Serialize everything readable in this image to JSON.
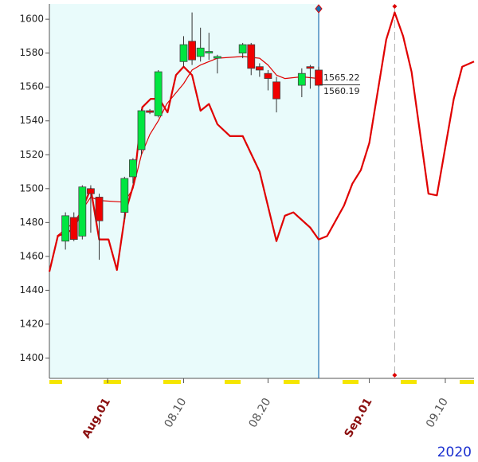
{
  "chart_data": {
    "type": "candlestick",
    "x": [
      0,
      1,
      2,
      3,
      4,
      7,
      8,
      9,
      10,
      11,
      14,
      15,
      16,
      17,
      18,
      21,
      22,
      23,
      24,
      25,
      28,
      29,
      30
    ],
    "open": [
      1469,
      1483,
      1472,
      1500,
      1495,
      1486,
      1507,
      1523,
      1546,
      1543,
      1575,
      1587,
      1578,
      1580,
      1577,
      1580,
      1585,
      1572,
      1568,
      1563,
      1561,
      1572,
      1570
    ],
    "high": [
      1486,
      1486,
      1502,
      1502,
      1497,
      1507,
      1518,
      1547,
      1547,
      1570,
      1590,
      1604,
      1595,
      1592,
      1579,
      1586,
      1586,
      1574,
      1570,
      1566,
      1571,
      1573,
      1572
    ],
    "low": [
      1464,
      1469,
      1470,
      1474,
      1458,
      1482,
      1503,
      1520,
      1544,
      1542,
      1572,
      1573,
      1575,
      1576,
      1568,
      1577,
      1567,
      1566,
      1558,
      1545,
      1554,
      1559,
      1560
    ],
    "close": [
      1484,
      1470,
      1501,
      1497,
      1481,
      1506,
      1517,
      1546,
      1545,
      1569,
      1585,
      1576,
      1583,
      1581,
      1578,
      1585,
      1571,
      1570,
      1565,
      1553,
      1568,
      1571,
      1561
    ],
    "up_color": "#00e640",
    "down_color": "#f00000",
    "lines": [
      {
        "color": "#e00000",
        "width": 2.2,
        "x": [
          -1.9,
          -0.9,
          1,
          3,
          4,
          5.1,
          6.1,
          7.1,
          8.1,
          9.1,
          10.1,
          11.1,
          12.1,
          13.1,
          14,
          15,
          16,
          17,
          18,
          19.5,
          21,
          23,
          25,
          26,
          27,
          29,
          30,
          31,
          33,
          34,
          35,
          36,
          38,
          39,
          40,
          41,
          43,
          44,
          46,
          47,
          48.4
        ],
        "y": [
          1451,
          1472,
          1476,
          1500,
          1470,
          1470,
          1452,
          1486,
          1503,
          1548,
          1553,
          1553,
          1545,
          1567,
          1572,
          1567,
          1546,
          1550,
          1538,
          1531,
          1531,
          1510,
          1469,
          1484,
          1486,
          1477,
          1470,
          1472,
          1490,
          1503,
          1511,
          1527,
          1588,
          1604,
          1590,
          1569,
          1497,
          1496,
          1553,
          1572,
          1575
        ]
      },
      {
        "color": "#e00000",
        "width": 1.2,
        "x": [
          -1,
          1,
          3,
          4,
          7,
          8,
          9,
          10,
          11,
          12,
          13,
          14,
          15,
          16,
          17,
          18,
          21,
          23,
          24,
          25,
          26,
          28,
          30
        ],
        "y": [
          1472,
          1480,
          1495,
          1493,
          1492,
          1500,
          1520,
          1532,
          1540,
          1550,
          1556,
          1562,
          1570,
          1573,
          1575,
          1577,
          1578,
          1577,
          1573,
          1567,
          1565,
          1566,
          1565
        ]
      }
    ],
    "markers": [
      {
        "x": 30,
        "color": "#1a6fb0"
      },
      {
        "x": 39,
        "color": "#b0b0b0"
      }
    ],
    "price_labels": [
      1565.22,
      1560.19
    ],
    "year_label": "2020",
    "xlim": [
      -1.9,
      48.4
    ],
    "ylim": [
      1388,
      1609
    ],
    "yticks": [
      1400,
      1420,
      1440,
      1460,
      1480,
      1500,
      1520,
      1540,
      1560,
      1580,
      1600
    ],
    "xticks": [
      {
        "value": 5,
        "label": "Aug.01",
        "color": "#8b1010"
      },
      {
        "value": 14,
        "label": "08.10",
        "color": "#555555"
      },
      {
        "value": 24,
        "label": "08.20",
        "color": "#555555"
      },
      {
        "value": 36,
        "label": "Sep.01",
        "color": "#8b1010"
      },
      {
        "value": 45,
        "label": "09.10",
        "color": "#555555"
      }
    ]
  }
}
